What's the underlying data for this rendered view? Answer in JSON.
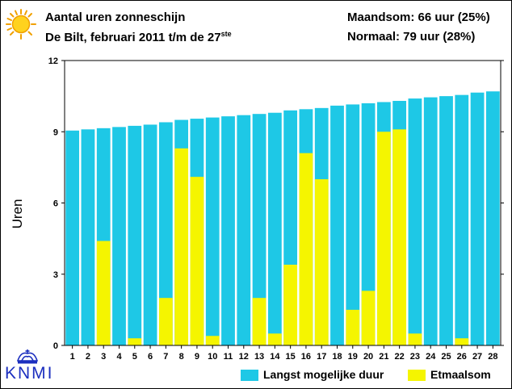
{
  "header": {
    "title": "Aantal uren zonneschijn",
    "subtitle_main": "De Bilt, februari 2011 t/m de 27",
    "subtitle_sup": "ste",
    "month_sum": "Maandsom: 66 uur (25%)",
    "normal": "Normaal: 79 uur (28%)"
  },
  "logo": {
    "text": "KNMI"
  },
  "icons": {
    "sun": "sun-icon",
    "crown": "crown-icon"
  },
  "colors": {
    "max_duration": "#1ec8e6",
    "daily_sum": "#f5f500",
    "frame": "#000000"
  },
  "chart_data": {
    "type": "bar",
    "ylabel": "Uren",
    "ylim": [
      0,
      12
    ],
    "yticks": [
      0,
      3,
      6,
      9,
      12
    ],
    "categories": [
      "1",
      "2",
      "3",
      "4",
      "5",
      "6",
      "7",
      "8",
      "9",
      "10",
      "11",
      "12",
      "13",
      "14",
      "15",
      "16",
      "17",
      "18",
      "19",
      "20",
      "21",
      "22",
      "23",
      "24",
      "25",
      "26",
      "27",
      "28"
    ],
    "series": [
      {
        "name": "Langst mogelijke duur",
        "values": [
          9.05,
          9.1,
          9.15,
          9.2,
          9.25,
          9.3,
          9.4,
          9.5,
          9.55,
          9.6,
          9.65,
          9.7,
          9.75,
          9.8,
          9.9,
          9.95,
          10.0,
          10.1,
          10.15,
          10.2,
          10.25,
          10.3,
          10.4,
          10.45,
          10.5,
          10.55,
          10.65,
          10.7
        ]
      },
      {
        "name": "Etmaalsom",
        "values": [
          0,
          0,
          4.4,
          0,
          0.3,
          0,
          2.0,
          8.3,
          7.1,
          0.4,
          0,
          0,
          2.0,
          0.5,
          3.4,
          8.1,
          7.0,
          0,
          1.5,
          2.3,
          9.0,
          9.1,
          0.5,
          0,
          0,
          0.3,
          0,
          0
        ]
      }
    ],
    "legend": "bottom-right"
  }
}
